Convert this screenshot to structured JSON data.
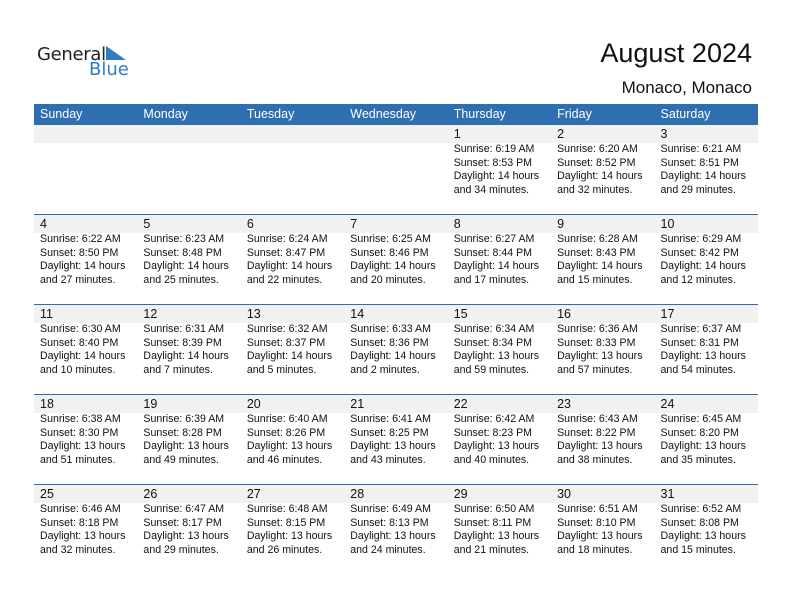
{
  "logo": {
    "line1": "General",
    "line2": "Blue"
  },
  "title": "August 2024",
  "location": "Monaco, Monaco",
  "colors": {
    "header": "#2e6fb1",
    "logo_blue": "#2e7bc4",
    "date_band": "#f1f1f1"
  },
  "weekdays": [
    "Sunday",
    "Monday",
    "Tuesday",
    "Wednesday",
    "Thursday",
    "Friday",
    "Saturday"
  ],
  "weeks": [
    [
      null,
      null,
      null,
      null,
      {
        "day": "1",
        "sunrise": "Sunrise: 6:19 AM",
        "sunset": "Sunset: 8:53 PM",
        "daylight": "Daylight: 14 hours",
        "minutes": "and 34 minutes."
      },
      {
        "day": "2",
        "sunrise": "Sunrise: 6:20 AM",
        "sunset": "Sunset: 8:52 PM",
        "daylight": "Daylight: 14 hours",
        "minutes": "and 32 minutes."
      },
      {
        "day": "3",
        "sunrise": "Sunrise: 6:21 AM",
        "sunset": "Sunset: 8:51 PM",
        "daylight": "Daylight: 14 hours",
        "minutes": "and 29 minutes."
      }
    ],
    [
      {
        "day": "4",
        "sunrise": "Sunrise: 6:22 AM",
        "sunset": "Sunset: 8:50 PM",
        "daylight": "Daylight: 14 hours",
        "minutes": "and 27 minutes."
      },
      {
        "day": "5",
        "sunrise": "Sunrise: 6:23 AM",
        "sunset": "Sunset: 8:48 PM",
        "daylight": "Daylight: 14 hours",
        "minutes": "and 25 minutes."
      },
      {
        "day": "6",
        "sunrise": "Sunrise: 6:24 AM",
        "sunset": "Sunset: 8:47 PM",
        "daylight": "Daylight: 14 hours",
        "minutes": "and 22 minutes."
      },
      {
        "day": "7",
        "sunrise": "Sunrise: 6:25 AM",
        "sunset": "Sunset: 8:46 PM",
        "daylight": "Daylight: 14 hours",
        "minutes": "and 20 minutes."
      },
      {
        "day": "8",
        "sunrise": "Sunrise: 6:27 AM",
        "sunset": "Sunset: 8:44 PM",
        "daylight": "Daylight: 14 hours",
        "minutes": "and 17 minutes."
      },
      {
        "day": "9",
        "sunrise": "Sunrise: 6:28 AM",
        "sunset": "Sunset: 8:43 PM",
        "daylight": "Daylight: 14 hours",
        "minutes": "and 15 minutes."
      },
      {
        "day": "10",
        "sunrise": "Sunrise: 6:29 AM",
        "sunset": "Sunset: 8:42 PM",
        "daylight": "Daylight: 14 hours",
        "minutes": "and 12 minutes."
      }
    ],
    [
      {
        "day": "11",
        "sunrise": "Sunrise: 6:30 AM",
        "sunset": "Sunset: 8:40 PM",
        "daylight": "Daylight: 14 hours",
        "minutes": "and 10 minutes."
      },
      {
        "day": "12",
        "sunrise": "Sunrise: 6:31 AM",
        "sunset": "Sunset: 8:39 PM",
        "daylight": "Daylight: 14 hours",
        "minutes": "and 7 minutes."
      },
      {
        "day": "13",
        "sunrise": "Sunrise: 6:32 AM",
        "sunset": "Sunset: 8:37 PM",
        "daylight": "Daylight: 14 hours",
        "minutes": "and 5 minutes."
      },
      {
        "day": "14",
        "sunrise": "Sunrise: 6:33 AM",
        "sunset": "Sunset: 8:36 PM",
        "daylight": "Daylight: 14 hours",
        "minutes": "and 2 minutes."
      },
      {
        "day": "15",
        "sunrise": "Sunrise: 6:34 AM",
        "sunset": "Sunset: 8:34 PM",
        "daylight": "Daylight: 13 hours",
        "minutes": "and 59 minutes."
      },
      {
        "day": "16",
        "sunrise": "Sunrise: 6:36 AM",
        "sunset": "Sunset: 8:33 PM",
        "daylight": "Daylight: 13 hours",
        "minutes": "and 57 minutes."
      },
      {
        "day": "17",
        "sunrise": "Sunrise: 6:37 AM",
        "sunset": "Sunset: 8:31 PM",
        "daylight": "Daylight: 13 hours",
        "minutes": "and 54 minutes."
      }
    ],
    [
      {
        "day": "18",
        "sunrise": "Sunrise: 6:38 AM",
        "sunset": "Sunset: 8:30 PM",
        "daylight": "Daylight: 13 hours",
        "minutes": "and 51 minutes."
      },
      {
        "day": "19",
        "sunrise": "Sunrise: 6:39 AM",
        "sunset": "Sunset: 8:28 PM",
        "daylight": "Daylight: 13 hours",
        "minutes": "and 49 minutes."
      },
      {
        "day": "20",
        "sunrise": "Sunrise: 6:40 AM",
        "sunset": "Sunset: 8:26 PM",
        "daylight": "Daylight: 13 hours",
        "minutes": "and 46 minutes."
      },
      {
        "day": "21",
        "sunrise": "Sunrise: 6:41 AM",
        "sunset": "Sunset: 8:25 PM",
        "daylight": "Daylight: 13 hours",
        "minutes": "and 43 minutes."
      },
      {
        "day": "22",
        "sunrise": "Sunrise: 6:42 AM",
        "sunset": "Sunset: 8:23 PM",
        "daylight": "Daylight: 13 hours",
        "minutes": "and 40 minutes."
      },
      {
        "day": "23",
        "sunrise": "Sunrise: 6:43 AM",
        "sunset": "Sunset: 8:22 PM",
        "daylight": "Daylight: 13 hours",
        "minutes": "and 38 minutes."
      },
      {
        "day": "24",
        "sunrise": "Sunrise: 6:45 AM",
        "sunset": "Sunset: 8:20 PM",
        "daylight": "Daylight: 13 hours",
        "minutes": "and 35 minutes."
      }
    ],
    [
      {
        "day": "25",
        "sunrise": "Sunrise: 6:46 AM",
        "sunset": "Sunset: 8:18 PM",
        "daylight": "Daylight: 13 hours",
        "minutes": "and 32 minutes."
      },
      {
        "day": "26",
        "sunrise": "Sunrise: 6:47 AM",
        "sunset": "Sunset: 8:17 PM",
        "daylight": "Daylight: 13 hours",
        "minutes": "and 29 minutes."
      },
      {
        "day": "27",
        "sunrise": "Sunrise: 6:48 AM",
        "sunset": "Sunset: 8:15 PM",
        "daylight": "Daylight: 13 hours",
        "minutes": "and 26 minutes."
      },
      {
        "day": "28",
        "sunrise": "Sunrise: 6:49 AM",
        "sunset": "Sunset: 8:13 PM",
        "daylight": "Daylight: 13 hours",
        "minutes": "and 24 minutes."
      },
      {
        "day": "29",
        "sunrise": "Sunrise: 6:50 AM",
        "sunset": "Sunset: 8:11 PM",
        "daylight": "Daylight: 13 hours",
        "minutes": "and 21 minutes."
      },
      {
        "day": "30",
        "sunrise": "Sunrise: 6:51 AM",
        "sunset": "Sunset: 8:10 PM",
        "daylight": "Daylight: 13 hours",
        "minutes": "and 18 minutes."
      },
      {
        "day": "31",
        "sunrise": "Sunrise: 6:52 AM",
        "sunset": "Sunset: 8:08 PM",
        "daylight": "Daylight: 13 hours",
        "minutes": "and 15 minutes."
      }
    ]
  ]
}
